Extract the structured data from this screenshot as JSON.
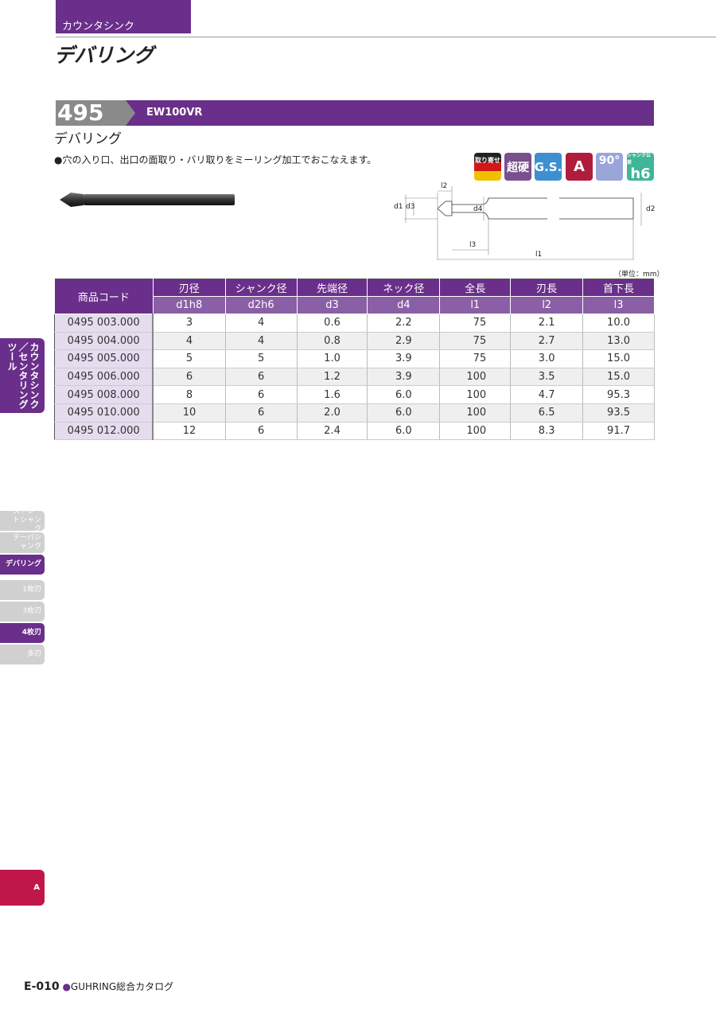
{
  "header": {
    "category": "カウンタシンク",
    "title": "デバリング"
  },
  "series": {
    "number": "495",
    "code": "EW100VR",
    "name": "デバリング",
    "description": "●穴の入り口、出口の面取り・バリ取りをミーリング加工でおこなえます。"
  },
  "icons": [
    {
      "name": "made-to-order-icon",
      "label": "取り寄せ",
      "color": "#222222"
    },
    {
      "name": "carbide-icon",
      "label": "超硬",
      "color": "#7a4f8e"
    },
    {
      "name": "gs-coating-icon",
      "label": "G.S.",
      "color": "#3d8fd0"
    },
    {
      "name": "type-a-icon",
      "label": "A",
      "color": "#b01c3c"
    },
    {
      "name": "angle-90-icon",
      "label": "90°",
      "color": "#9aa5d8"
    },
    {
      "name": "shank-h6-icon",
      "label": "h6",
      "sublabel": "シャンク公差",
      "color": "#3fb59a"
    }
  ],
  "diagram": {
    "labels": {
      "d1": "d1",
      "d3": "d3",
      "d4": "d4",
      "d2": "d2",
      "l1": "l1",
      "l2": "l2",
      "l3": "l3"
    },
    "unit": "（単位：mm）"
  },
  "table": {
    "headers": [
      "商品コード",
      "刃径",
      "シャンク径",
      "先端径",
      "ネック径",
      "全長",
      "刃長",
      "首下長"
    ],
    "subheaders": [
      "d1h8",
      "d2h6",
      "d3",
      "d4",
      "l1",
      "l2",
      "l3"
    ],
    "rows": [
      [
        "0495 003.000",
        "3",
        "4",
        "0.6",
        "2.2",
        "75",
        "2.1",
        "10.0"
      ],
      [
        "0495 004.000",
        "4",
        "4",
        "0.8",
        "2.9",
        "75",
        "2.7",
        "13.0"
      ],
      [
        "0495 005.000",
        "5",
        "5",
        "1.0",
        "3.9",
        "75",
        "3.0",
        "15.0"
      ],
      [
        "0495 006.000",
        "6",
        "6",
        "1.2",
        "3.9",
        "100",
        "3.5",
        "15.0"
      ],
      [
        "0495 008.000",
        "8",
        "6",
        "1.6",
        "6.0",
        "100",
        "4.7",
        "95.3"
      ],
      [
        "0495 010.000",
        "10",
        "6",
        "2.0",
        "6.0",
        "100",
        "6.5",
        "93.5"
      ],
      [
        "0495 012.000",
        "12",
        "6",
        "2.4",
        "6.0",
        "100",
        "8.3",
        "91.7"
      ]
    ]
  },
  "sidebar": {
    "section": "カウンタシンク／センタリングツール",
    "items": [
      {
        "label": "ストレートシャンク",
        "active": false
      },
      {
        "label": "テーパシャンク",
        "active": false
      },
      {
        "label": "デバリング",
        "active": true
      },
      {
        "label": "1枚刃",
        "active": false
      },
      {
        "label": "3枚刃",
        "active": false
      },
      {
        "label": "4枚刃",
        "active": true
      },
      {
        "label": "多刃",
        "active": false
      }
    ],
    "index_tab": "A"
  },
  "footer": {
    "page": "E-010",
    "catalog": "GUHRING総合カタログ"
  }
}
